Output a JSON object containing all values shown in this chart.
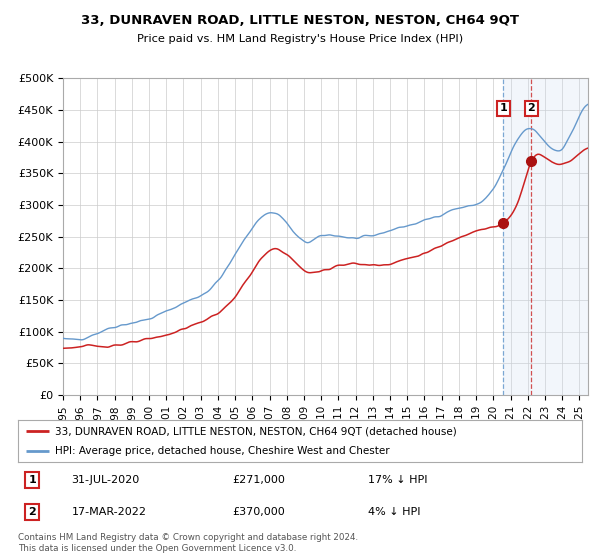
{
  "title": "33, DUNRAVEN ROAD, LITTLE NESTON, NESTON, CH64 9QT",
  "subtitle": "Price paid vs. HM Land Registry's House Price Index (HPI)",
  "ylim": [
    0,
    500000
  ],
  "yticks": [
    0,
    50000,
    100000,
    150000,
    200000,
    250000,
    300000,
    350000,
    400000,
    450000,
    500000
  ],
  "ytick_labels": [
    "£0",
    "£50K",
    "£100K",
    "£150K",
    "£200K",
    "£250K",
    "£300K",
    "£350K",
    "£400K",
    "£450K",
    "£500K"
  ],
  "hpi_color": "#6699cc",
  "price_color": "#cc2222",
  "marker_color": "#aa1111",
  "vline1_color": "#6699cc",
  "vline2_color": "#cc3333",
  "shading_color": "#ccddf0",
  "background_color": "#ffffff",
  "grid_color": "#cccccc",
  "transaction1_date": 2020.58,
  "transaction1_price": 271000,
  "transaction1_label": "1",
  "transaction2_date": 2022.21,
  "transaction2_price": 370000,
  "transaction2_label": "2",
  "legend1": "33, DUNRAVEN ROAD, LITTLE NESTON, NESTON, CH64 9QT (detached house)",
  "legend2": "HPI: Average price, detached house, Cheshire West and Chester",
  "table_row1_num": "1",
  "table_row1_date": "31-JUL-2020",
  "table_row1_price": "£271,000",
  "table_row1_hpi": "17% ↓ HPI",
  "table_row2_num": "2",
  "table_row2_date": "17-MAR-2022",
  "table_row2_price": "£370,000",
  "table_row2_hpi": "4% ↓ HPI",
  "footnote": "Contains HM Land Registry data © Crown copyright and database right 2024.\nThis data is licensed under the Open Government Licence v3.0.",
  "xmin": 1995,
  "xmax": 2025.5,
  "hpi_key_dates": [
    1995,
    1997,
    1998,
    2000,
    2002,
    2004,
    2007.5,
    2009,
    2010,
    2012,
    2014,
    2016,
    2018,
    2020,
    2021,
    2022,
    2023,
    2024,
    2025,
    2026
  ],
  "hpi_key_prices": [
    88000,
    98000,
    108000,
    120000,
    145000,
    180000,
    285000,
    242000,
    250000,
    247000,
    260000,
    275000,
    295000,
    325000,
    380000,
    420000,
    400000,
    390000,
    440000,
    450000
  ],
  "prop_key_dates": [
    1995,
    1997,
    1999,
    2001,
    2003,
    2005,
    2007.5,
    2009,
    2011,
    2013,
    2015,
    2017,
    2019,
    2020.58,
    2021.5,
    2022.21,
    2023,
    2024,
    2025,
    2026
  ],
  "prop_key_prices": [
    74000,
    77000,
    82000,
    95000,
    115000,
    155000,
    230000,
    197000,
    205000,
    205000,
    215000,
    235000,
    260000,
    271000,
    310000,
    370000,
    375000,
    365000,
    382000,
    390000
  ]
}
